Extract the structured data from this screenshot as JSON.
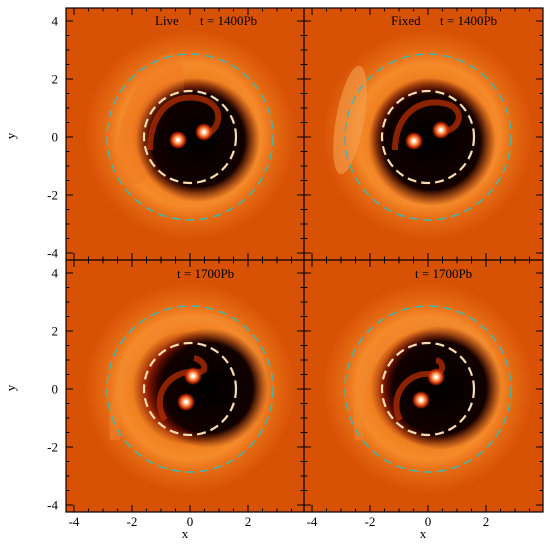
{
  "figure": {
    "panels": [
      {
        "id": "top-left",
        "label_left": "Live",
        "label_time": "t = 1400Pb"
      },
      {
        "id": "top-right",
        "label_left": "Fixed",
        "label_time": "t = 1400Pb"
      },
      {
        "id": "bottom-left",
        "label_left": "",
        "label_time": "t = 1700Pb"
      },
      {
        "id": "bottom-right",
        "label_left": "",
        "label_time": "t = 1700Pb"
      }
    ],
    "x_axis": {
      "label": "x",
      "ticks": [
        "-4",
        "-2",
        "0",
        "2"
      ],
      "range": [
        -4.2,
        4.2
      ]
    },
    "y_axis": {
      "label": "y",
      "ticks": [
        "4",
        "2",
        "0",
        "-2",
        "-4"
      ],
      "range": [
        -4.2,
        4.5
      ]
    },
    "circles": {
      "inner_radius": 1.6,
      "outer_radius": 2.9,
      "inner_color": "#f5dcb0",
      "outer_color": "#3fb8b0"
    },
    "colors": {
      "background": "#d85206",
      "cavity": "#0a0000",
      "bright": "#ffa040",
      "star": "#ffffff"
    }
  }
}
